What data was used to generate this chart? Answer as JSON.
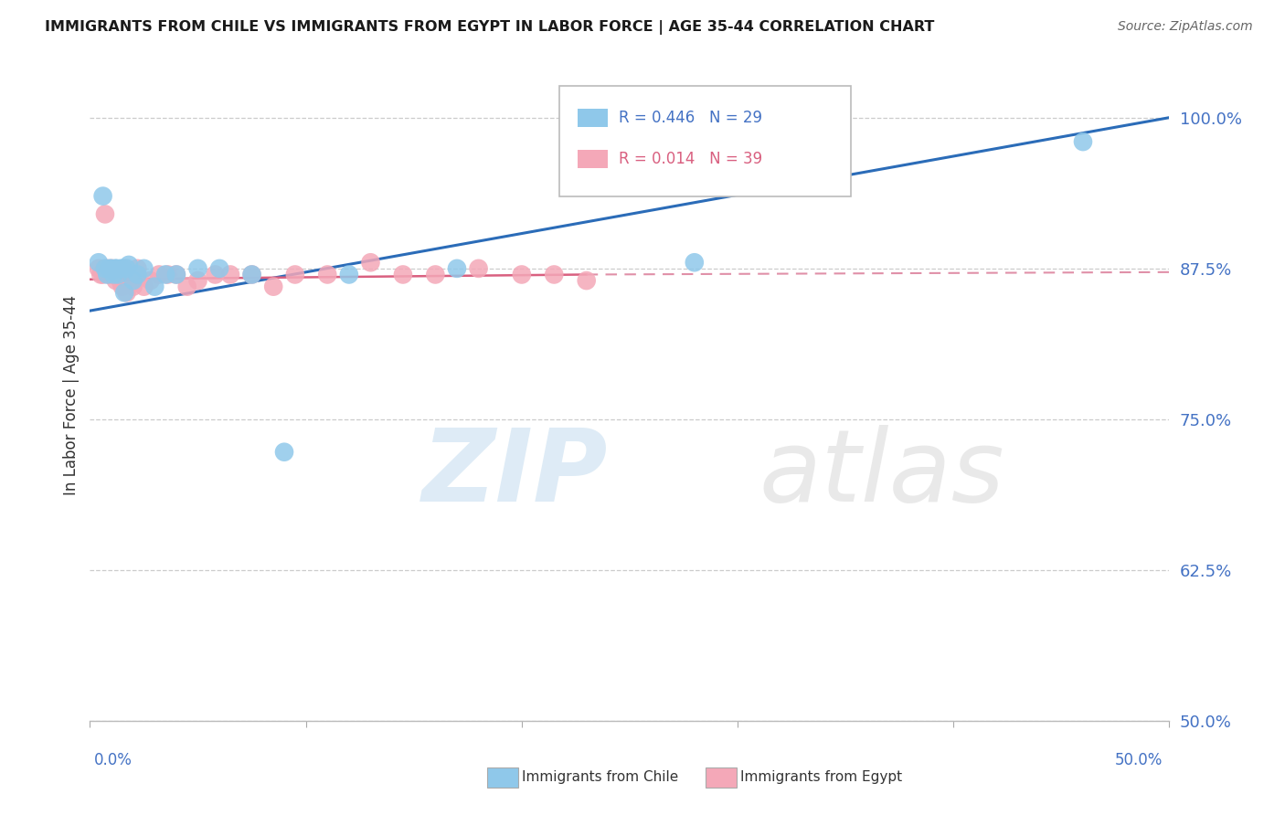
{
  "title": "IMMIGRANTS FROM CHILE VS IMMIGRANTS FROM EGYPT IN LABOR FORCE | AGE 35-44 CORRELATION CHART",
  "source": "Source: ZipAtlas.com",
  "ylabel": "In Labor Force | Age 35-44",
  "y_ticks": [
    0.5,
    0.625,
    0.75,
    0.875,
    1.0
  ],
  "y_tick_labels": [
    "50.0%",
    "62.5%",
    "75.0%",
    "87.5%",
    "100.0%"
  ],
  "xlim": [
    0.0,
    0.5
  ],
  "ylim": [
    0.5,
    1.04
  ],
  "chile_R": 0.446,
  "chile_N": 29,
  "egypt_R": 0.014,
  "egypt_N": 39,
  "chile_color": "#8fc8ea",
  "egypt_color": "#f4a8b8",
  "chile_line_color": "#2b6cb8",
  "egypt_line_color": "#d96080",
  "egypt_line_dashed_color": "#e090a8",
  "background_color": "#ffffff",
  "grid_color": "#cccccc",
  "chile_x": [
    0.004,
    0.006,
    0.007,
    0.008,
    0.009,
    0.01,
    0.011,
    0.012,
    0.012,
    0.013,
    0.014,
    0.015,
    0.016,
    0.017,
    0.018,
    0.02,
    0.022,
    0.025,
    0.03,
    0.035,
    0.04,
    0.05,
    0.06,
    0.075,
    0.09,
    0.12,
    0.17,
    0.28,
    0.46
  ],
  "chile_y": [
    0.88,
    0.935,
    0.875,
    0.87,
    0.875,
    0.875,
    0.87,
    0.875,
    0.875,
    0.87,
    0.875,
    0.875,
    0.855,
    0.875,
    0.878,
    0.865,
    0.87,
    0.875,
    0.86,
    0.87,
    0.87,
    0.875,
    0.875,
    0.87,
    0.723,
    0.87,
    0.875,
    0.88,
    0.98
  ],
  "egypt_x": [
    0.004,
    0.005,
    0.006,
    0.007,
    0.008,
    0.009,
    0.01,
    0.011,
    0.012,
    0.012,
    0.013,
    0.014,
    0.015,
    0.016,
    0.017,
    0.018,
    0.019,
    0.02,
    0.022,
    0.025,
    0.028,
    0.032,
    0.036,
    0.04,
    0.045,
    0.05,
    0.058,
    0.065,
    0.075,
    0.085,
    0.095,
    0.11,
    0.13,
    0.145,
    0.16,
    0.18,
    0.2,
    0.215,
    0.23
  ],
  "egypt_y": [
    0.875,
    0.87,
    0.87,
    0.92,
    0.875,
    0.87,
    0.875,
    0.87,
    0.865,
    0.87,
    0.87,
    0.865,
    0.86,
    0.875,
    0.855,
    0.87,
    0.865,
    0.86,
    0.875,
    0.86,
    0.865,
    0.87,
    0.87,
    0.87,
    0.86,
    0.865,
    0.87,
    0.87,
    0.87,
    0.86,
    0.87,
    0.87,
    0.88,
    0.87,
    0.87,
    0.875,
    0.87,
    0.87,
    0.865
  ],
  "legend_R_chile": "R = 0.446",
  "legend_N_chile": "N = 29",
  "legend_R_egypt": "R = 0.014",
  "legend_N_egypt": "N = 39"
}
